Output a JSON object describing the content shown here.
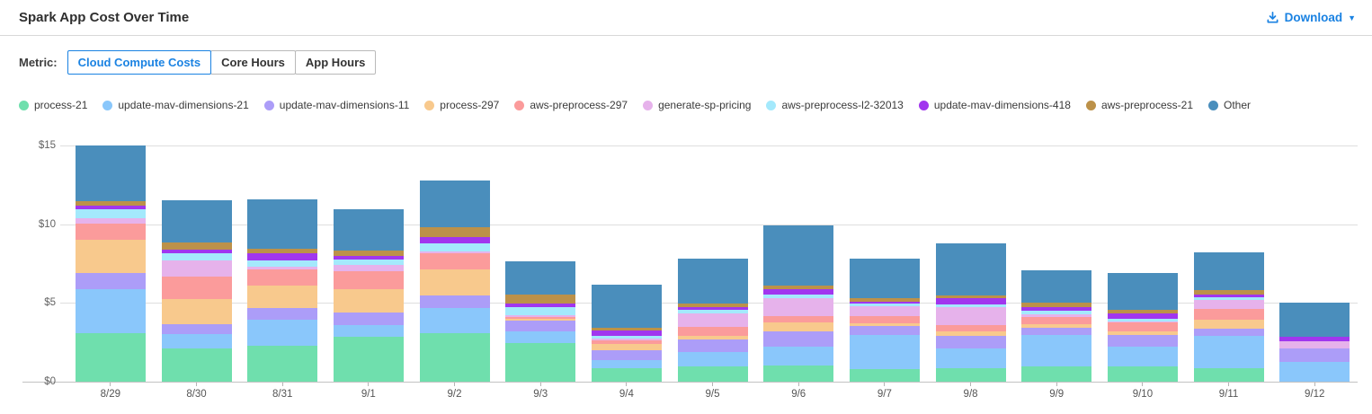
{
  "header": {
    "title": "Spark App Cost Over Time",
    "download_label": "Download"
  },
  "metric": {
    "label": "Metric:",
    "options": [
      "Cloud Compute Costs",
      "Core Hours",
      "App Hours"
    ],
    "selected": "Cloud Compute Costs"
  },
  "colors": {
    "accent": "#1a82e2"
  },
  "chart_data": {
    "type": "bar",
    "stacked": true,
    "title": "Spark App Cost Over Time",
    "ylabel": "Cloud Compute Costs ($)",
    "ylim": [
      0,
      15
    ],
    "y_ticks": [
      {
        "label": "$15",
        "pos": 0
      },
      {
        "label": "$10",
        "pos": 33.333
      },
      {
        "label": "$5",
        "pos": 66.667
      },
      {
        "label": "$0",
        "pos": 100
      }
    ],
    "grid": true,
    "legend_position": "top",
    "categories": [
      "8/29",
      "8/30",
      "8/31",
      "9/1",
      "9/2",
      "9/3",
      "9/4",
      "9/5",
      "9/6",
      "9/7",
      "9/8",
      "9/9",
      "9/10",
      "9/11",
      "9/12"
    ],
    "series": [
      {
        "name": "process-21",
        "color": "#6FDFAD",
        "values": [
          3.1,
          2.1,
          2.28,
          2.85,
          3.08,
          2.45,
          0.86,
          0.99,
          1.05,
          0.8,
          0.86,
          0.99,
          0.99,
          0.86,
          0
        ]
      },
      {
        "name": "update-mav-dimensions-21",
        "color": "#8AC7FB",
        "values": [
          2.8,
          0.95,
          1.66,
          0.74,
          1.61,
          0.74,
          0.51,
          0.91,
          1.2,
          2.15,
          1.23,
          1.96,
          1.26,
          2.03,
          1.25
        ]
      },
      {
        "name": "update-mav-dimensions-11",
        "color": "#AC9DF8",
        "values": [
          1.0,
          0.62,
          0.72,
          0.8,
          0.76,
          0.69,
          0.63,
          0.77,
          0.92,
          0.57,
          0.8,
          0.48,
          0.7,
          0.5,
          0.86
        ]
      },
      {
        "name": "process-297",
        "color": "#F8C98D",
        "values": [
          2.1,
          1.6,
          1.42,
          1.49,
          1.68,
          0.1,
          0.39,
          0.22,
          0.57,
          0.19,
          0.31,
          0.23,
          0.24,
          0.57,
          0
        ]
      },
      {
        "name": "aws-preprocess-297",
        "color": "#FB9B9B",
        "values": [
          1.05,
          1.42,
          1.07,
          1.14,
          1.05,
          0.12,
          0.23,
          0.57,
          0.4,
          0.47,
          0.38,
          0.44,
          0.56,
          0.65,
          0
        ]
      },
      {
        "name": "generate-sp-pricing",
        "color": "#E6B2EB",
        "values": [
          0.35,
          1.03,
          0.17,
          0.4,
          0.1,
          0.14,
          0.14,
          0.89,
          1.18,
          0.63,
          1.14,
          0.18,
          0.05,
          0.57,
          0.46
        ]
      },
      {
        "name": "aws-preprocess-l2-32013",
        "color": "#A4E9FC",
        "values": [
          0.55,
          0.46,
          0.39,
          0.34,
          0.48,
          0.52,
          0.14,
          0.23,
          0.19,
          0.13,
          0.17,
          0.25,
          0.19,
          0.19,
          0
        ]
      },
      {
        "name": "update-mav-dimensions-418",
        "color": "#A136EE",
        "values": [
          0.22,
          0.2,
          0.47,
          0.23,
          0.43,
          0.22,
          0.37,
          0.18,
          0.34,
          0.15,
          0.4,
          0.23,
          0.34,
          0.19,
          0.28
        ]
      },
      {
        "name": "aws-preprocess-21",
        "color": "#BC9149",
        "values": [
          0.28,
          0.45,
          0.27,
          0.34,
          0.61,
          0.57,
          0.15,
          0.22,
          0.23,
          0.21,
          0.19,
          0.28,
          0.23,
          0.24,
          0
        ]
      },
      {
        "name": "Other",
        "color": "#4A8EBC",
        "values": [
          3.55,
          2.72,
          3.12,
          2.62,
          2.98,
          2.09,
          2.74,
          2.82,
          3.85,
          2.5,
          3.3,
          2.03,
          2.34,
          2.41,
          2.2
        ]
      }
    ]
  }
}
